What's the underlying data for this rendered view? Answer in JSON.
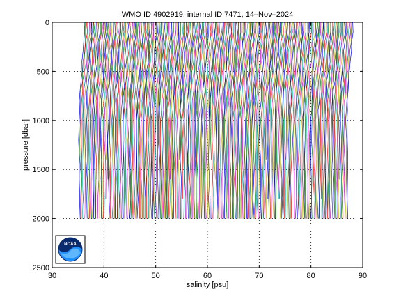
{
  "chart_data": {
    "type": "line",
    "title": "WMO ID 4902919, internal ID 7471, 14–Nov–2024",
    "xlabel": "salinity [psu]",
    "ylabel": "pressure [dbar]",
    "xlim": [
      30,
      90
    ],
    "ylim": [
      0,
      2500
    ],
    "y_reversed": true,
    "xticks": [
      30,
      40,
      50,
      60,
      70,
      80,
      90
    ],
    "yticks": [
      0,
      500,
      1000,
      1500,
      2000,
      2500
    ],
    "xtick_labels": [
      "30",
      "40",
      "50",
      "60",
      "70",
      "80",
      "90"
    ],
    "ytick_labels": [
      "0",
      "500",
      "1000",
      "1500",
      "2000",
      "2500"
    ],
    "grid": true,
    "profile_offset_psu": 0.2,
    "profile_count": 260,
    "first_profile_surface_salinity": 36.3,
    "profile_shape": {
      "pressure": [
        0,
        100,
        200,
        300,
        400,
        500,
        600,
        700,
        800,
        900,
        1000,
        1200,
        1400,
        1600,
        1800,
        2000
      ],
      "salinity_offset": [
        0.0,
        0.05,
        -0.2,
        -0.35,
        -0.45,
        -0.6,
        -0.75,
        -0.9,
        -1.0,
        -1.05,
        -1.1,
        -1.1,
        -1.05,
        -1.0,
        -1.0,
        -1.0
      ]
    },
    "profile_colors": [
      "#0000ff",
      "#008000",
      "#ff0000",
      "#00bfbf",
      "#bf00bf",
      "#bfbf00",
      "#404040"
    ],
    "logo": {
      "name": "noaa-logo",
      "text": "NOAA"
    }
  }
}
